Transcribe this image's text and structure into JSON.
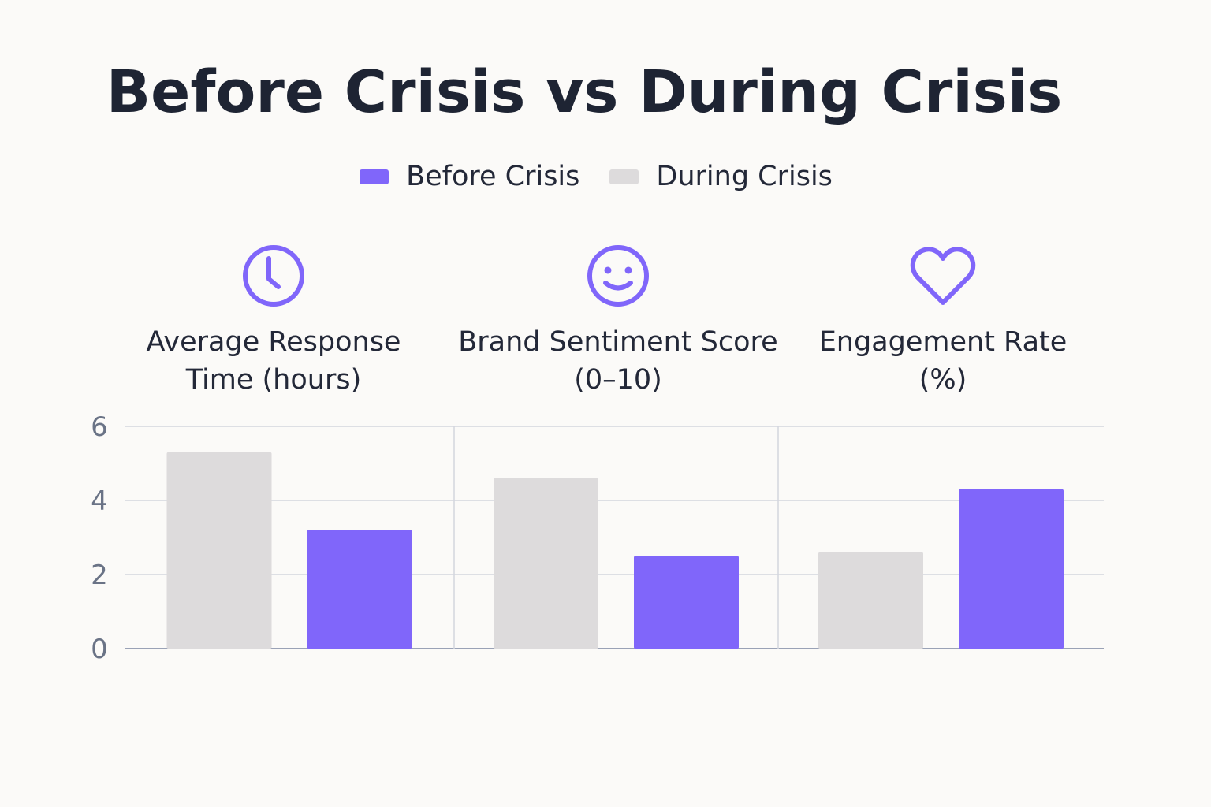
{
  "chart_data": {
    "type": "bar",
    "title": "Before Crisis vs During Crisis",
    "categories": [
      "Average Response Time (hours)",
      "Brand Sentiment Score (0–10)",
      "Engagement Rate (%)"
    ],
    "category_lines": [
      [
        "Average Response",
        "Time (hours)"
      ],
      [
        "Brand Sentiment Score",
        "(0–10)"
      ],
      [
        "Engagement Rate",
        "(%)"
      ]
    ],
    "category_icons": [
      "clock-icon",
      "smiley-icon",
      "heart-icon"
    ],
    "series": [
      {
        "name": "During Crisis",
        "color": "#dddbdc",
        "values": [
          5.3,
          4.6,
          2.6
        ]
      },
      {
        "name": "Before Crisis",
        "color": "#8066fa",
        "values": [
          3.2,
          2.5,
          4.3
        ]
      }
    ],
    "legend": [
      {
        "name": "Before Crisis",
        "color": "#8066fa"
      },
      {
        "name": "During Crisis",
        "color": "#dddbdc"
      }
    ],
    "legend_position": "top-center",
    "ylim": [
      0,
      6
    ],
    "yticks": [
      "0",
      "2",
      "4",
      "6"
    ],
    "grid": true,
    "xlabel": "",
    "ylabel": ""
  }
}
